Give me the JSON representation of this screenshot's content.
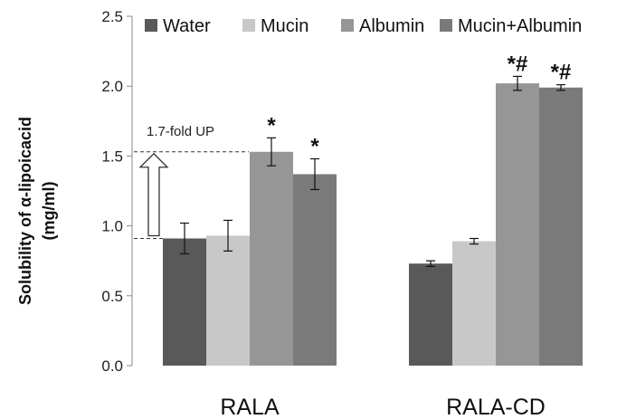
{
  "chart_data": {
    "type": "bar",
    "categories": [
      "RALA",
      "RALA-CD"
    ],
    "ylabel_line1": "Solubility of α-lipoicacid",
    "ylabel_line2": "(mg/ml)",
    "ylim": [
      0.0,
      2.5
    ],
    "yticks": [
      0.0,
      0.5,
      1.0,
      1.5,
      2.0,
      2.5
    ],
    "ytick_labels": [
      "0.0",
      "0.5",
      "1.0",
      "1.5",
      "2.0",
      "2.5"
    ],
    "legend_position": "top",
    "series": [
      {
        "name": "Water",
        "color": "#595959",
        "values": [
          0.91,
          0.73
        ],
        "errors": [
          0.11,
          0.02
        ],
        "marks": [
          "",
          ""
        ]
      },
      {
        "name": "Mucin",
        "color": "#c8c8c8",
        "values": [
          0.93,
          0.89
        ],
        "errors": [
          0.11,
          0.02
        ],
        "marks": [
          "",
          ""
        ]
      },
      {
        "name": "Albumin",
        "color": "#969696",
        "values": [
          1.53,
          2.02
        ],
        "errors": [
          0.1,
          0.05
        ],
        "marks": [
          "*",
          "*#"
        ]
      },
      {
        "name": "Mucin+Albumin",
        "color": "#7a7a7a",
        "values": [
          1.37,
          1.99
        ],
        "errors": [
          0.11,
          0.02
        ],
        "marks": [
          "*",
          "*#"
        ]
      }
    ],
    "annotation": {
      "text": "1.7-fold UP",
      "from": 0.91,
      "to": 1.53
    }
  }
}
